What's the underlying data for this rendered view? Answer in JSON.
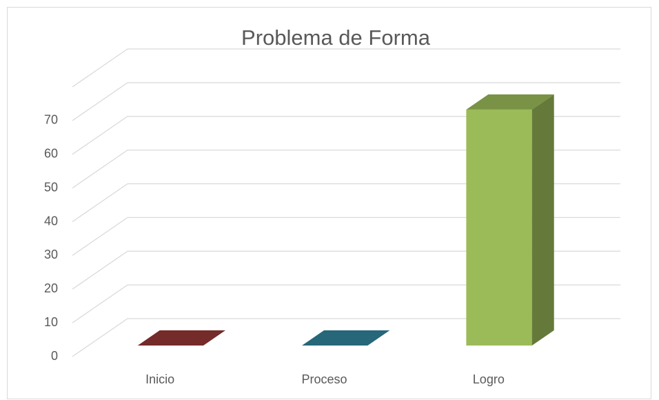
{
  "chart_data": {
    "type": "bar3d",
    "title": "Problema de Forma",
    "categories": [
      "Inicio",
      "Proceso",
      "Logro"
    ],
    "values": [
      0,
      0,
      70
    ],
    "colors": [
      "#953735",
      "#31849b",
      "#9bbb59"
    ],
    "ylim": [
      0,
      80
    ],
    "yticks": [
      0,
      10,
      20,
      30,
      40,
      50,
      60,
      70
    ],
    "grid": true
  }
}
